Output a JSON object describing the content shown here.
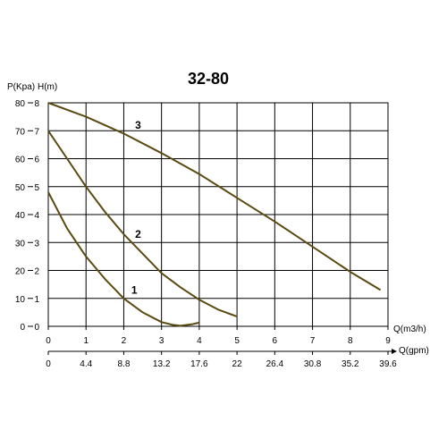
{
  "chart_data": {
    "type": "line",
    "title": "32-80",
    "ylabel_pressure": "P(Kpa)",
    "ylabel_head": "H(m)",
    "xlabel_flow_m3h": "Q(m3/h)",
    "xlabel_flow_gpm": "Q(gpm)",
    "xlim": [
      0,
      9
    ],
    "ylim": [
      0,
      8
    ],
    "grid": true,
    "x_ticks_m3h": [
      "0",
      "1",
      "2",
      "3",
      "4",
      "5",
      "6",
      "7",
      "8",
      "9"
    ],
    "x_ticks_gpm": [
      "0",
      "4.4",
      "8.8",
      "13.2",
      "17.6",
      "22",
      "26.4",
      "30.8",
      "35.2",
      "39.6"
    ],
    "y_ticks_kpa": [
      "0",
      "10",
      "20",
      "30",
      "40",
      "50",
      "60",
      "70",
      "80"
    ],
    "y_ticks_m": [
      "0",
      "1",
      "2",
      "3",
      "4",
      "5",
      "6",
      "7",
      "8"
    ],
    "series": [
      {
        "name": "1",
        "x": [
          0,
          0.5,
          1,
          1.5,
          2,
          2.5,
          3,
          3.3,
          3.5,
          3.8,
          4
        ],
        "y": [
          4.8,
          3.5,
          2.5,
          1.7,
          1.0,
          0.5,
          0.15,
          0.05,
          0.02,
          0.07,
          0.13
        ],
        "label_at": [
          2.2,
          1.3
        ]
      },
      {
        "name": "2",
        "x": [
          0,
          0.5,
          1,
          1.5,
          2,
          2.5,
          3,
          3.5,
          4,
          4.5,
          5
        ],
        "y": [
          7.0,
          6.0,
          5.0,
          4.1,
          3.3,
          2.6,
          1.9,
          1.4,
          0.95,
          0.6,
          0.35
        ],
        "label_at": [
          2.3,
          3.3
        ]
      },
      {
        "name": "3",
        "x": [
          0,
          1,
          2,
          3,
          4,
          5,
          6,
          7,
          8,
          8.8
        ],
        "y": [
          8.0,
          7.5,
          6.9,
          6.2,
          5.45,
          4.6,
          3.75,
          2.85,
          1.95,
          1.3
        ],
        "label_at": [
          2.3,
          7.2
        ]
      }
    ],
    "line_color": "#5a4a12",
    "grid_color": "#000000"
  }
}
